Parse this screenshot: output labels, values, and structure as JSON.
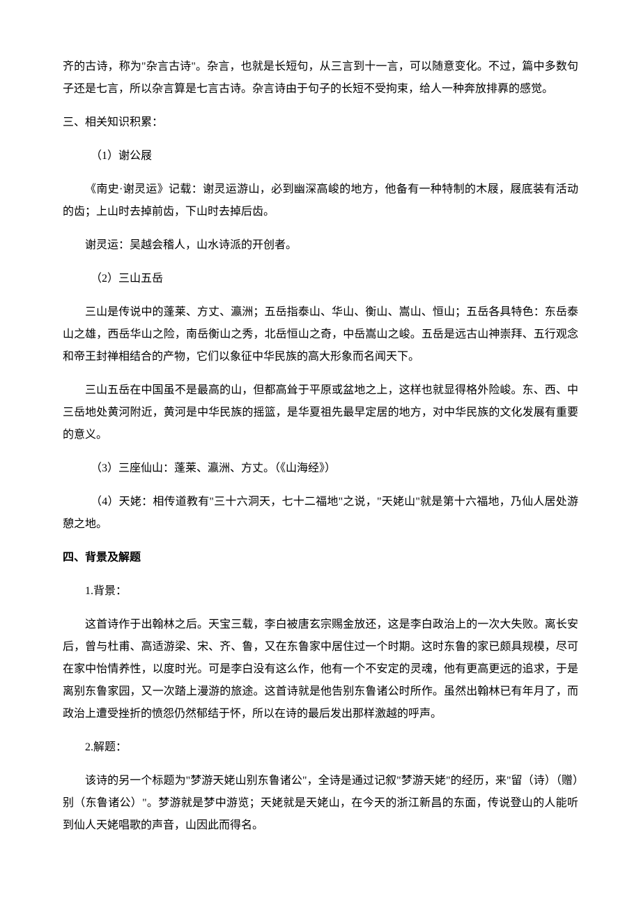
{
  "para1": "齐的古诗，称为\"杂言古诗\"。杂言，也就是长短句，从三言到十一言，可以随意变化。不过，篇中多数句子还是七言，所以杂言算是七言古诗。杂言诗由于句子的长短不受拘束，给人一种奔放排奡的感觉。",
  "heading3": "三、相关知识积累：",
  "item1_title": "（1）谢公屐",
  "item1_p1": "《南史·谢灵运》记载：谢灵运游山，必到幽深高峻的地方，他备有一种特制的木屐，屐底装有活动的齿；上山时去掉前齿，下山时去掉后齿。",
  "item1_p2": "谢灵运：吴越会稽人，山水诗派的开创者。",
  "item2_title": "（2）三山五岳",
  "item2_p1": "三山是传说中的蓬莱、方丈、瀛洲；五岳指泰山、华山、衡山、嵩山、恒山；五岳各具特色：东岳泰山之雄，西岳华山之险，南岳衡山之秀，北岳恒山之奇，中岳嵩山之峻。五岳是远古山神崇拜、五行观念和帝王封禅相结合的产物，它们以象征中华民族的高大形象而名闻天下。",
  "item2_p2": "三山五岳在中国虽不是最高的山，但都高耸于平原或盆地之上，这样也就显得格外险峻。东、西、中三岳地处黄河附近，黄河是中华民族的摇篮，是华夏祖先最早定居的地方，对中华民族的文化发展有重要的意义。",
  "item3": "（3）三座仙山：蓬莱、瀛洲、方丈。（《山海经》）",
  "item4": "（4）天姥：相传道教有\"三十六洞天，七十二福地\"之说，\"天姥山\"就是第十六福地，乃仙人居处游憩之地。",
  "heading4": "四、背景及解题",
  "bg_title": "1.背景：",
  "bg_p1": "这首诗作于出翰林之后。天宝三载，李白被唐玄宗赐金放还，这是李白政治上的一次大失败。离长安后，曾与杜甫、高适游梁、宋、齐、鲁，又在东鲁家中居住过一个时期。这时东鲁的家已颇具规模，尽可在家中怡情养性，以度时光。可是李白没有这么作，他有一个不安定的灵魂，他有更高更远的追求，于是离别东鲁家园，又一次踏上漫游的旅途。这首诗就是他告别东鲁诸公时所作。虽然出翰林已有年月了，而政治上遭受挫折的愤怨仍然郁结于怀，所以在诗的最后发出那样激越的呼声。",
  "jt_title": "2.解题：",
  "jt_p1": "该诗的另一个标题为\"梦游天姥山别东鲁诸公\"，全诗是通过记叙\"梦游天姥\"的经历，来\"留（诗）（赠）别（东鲁诸公）\"。梦游就是梦中游览；天姥就是天姥山，在今天的浙江新昌的东面，传说登山的人能听到仙人天姥唱歌的声音，山因此而得名。"
}
